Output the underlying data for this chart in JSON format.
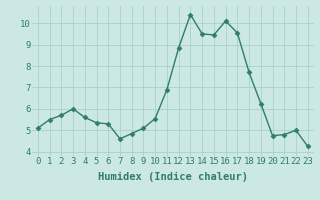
{
  "x": [
    0,
    1,
    2,
    3,
    4,
    5,
    6,
    7,
    8,
    9,
    10,
    11,
    12,
    13,
    14,
    15,
    16,
    17,
    18,
    19,
    20,
    21,
    22,
    23
  ],
  "y": [
    5.1,
    5.5,
    5.7,
    6.0,
    5.6,
    5.35,
    5.3,
    4.6,
    4.85,
    5.1,
    5.55,
    6.9,
    8.85,
    10.4,
    9.5,
    9.45,
    10.1,
    9.55,
    7.7,
    6.25,
    4.75,
    4.8,
    5.0,
    4.25
  ],
  "line_color": "#2e7d6e",
  "marker": "D",
  "marker_size": 2.5,
  "xlabel": "Humidex (Indice chaleur)",
  "ylim": [
    3.8,
    10.8
  ],
  "xlim": [
    -0.5,
    23.5
  ],
  "yticks": [
    4,
    5,
    6,
    7,
    8,
    9,
    10
  ],
  "xticks": [
    0,
    1,
    2,
    3,
    4,
    5,
    6,
    7,
    8,
    9,
    10,
    11,
    12,
    13,
    14,
    15,
    16,
    17,
    18,
    19,
    20,
    21,
    22,
    23
  ],
  "xtick_labels": [
    "0",
    "1",
    "2",
    "3",
    "4",
    "5",
    "6",
    "7",
    "8",
    "9",
    "10",
    "11",
    "12",
    "13",
    "14",
    "15",
    "16",
    "17",
    "18",
    "19",
    "20",
    "21",
    "22",
    "23"
  ],
  "background_color": "#cce8e4",
  "grid_color": "#aacfc9",
  "tick_fontsize": 6.5,
  "xlabel_fontsize": 7.5,
  "line_width": 1.0
}
